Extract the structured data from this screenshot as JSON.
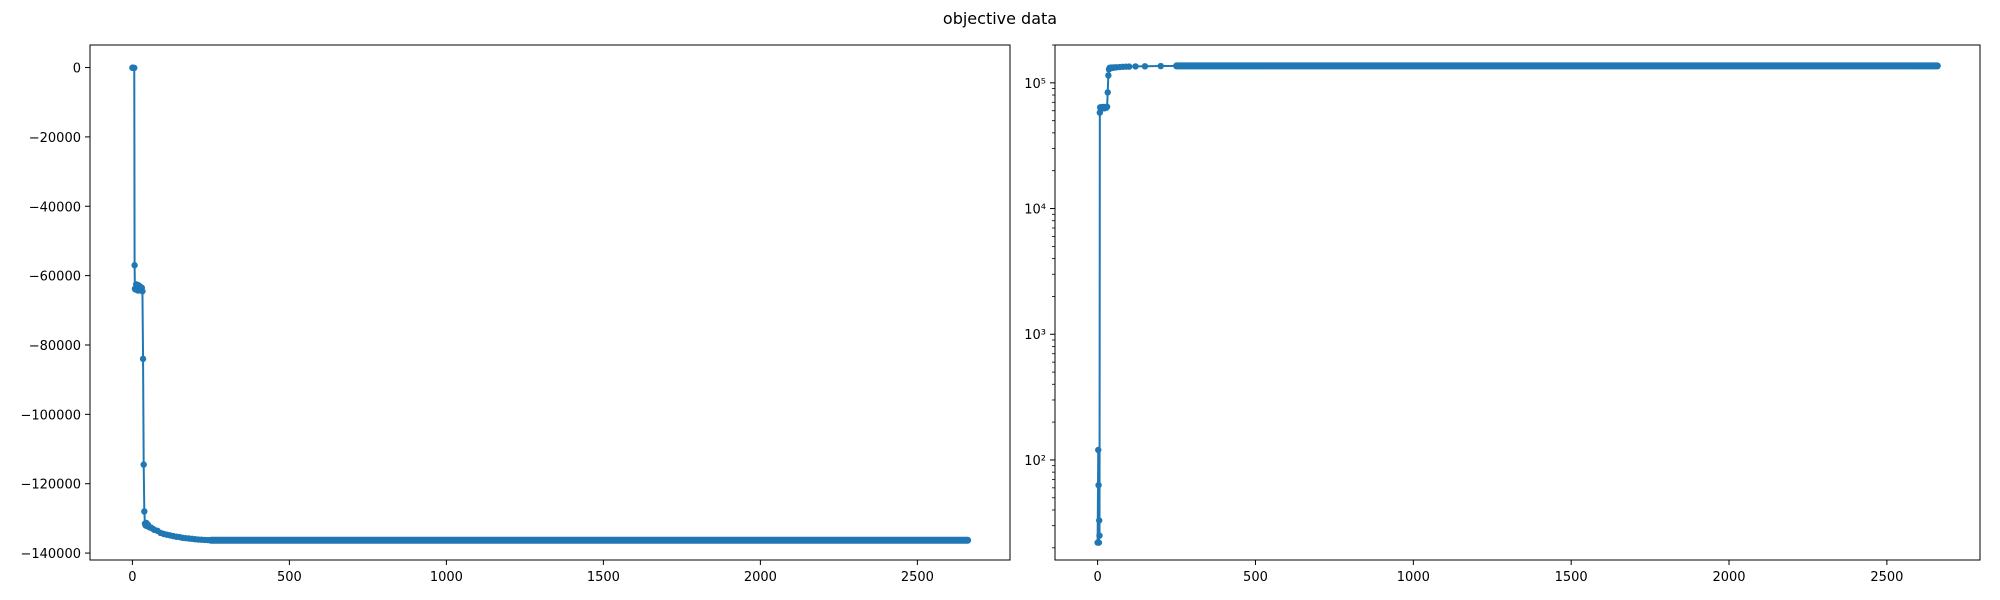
{
  "figure": {
    "suptitle": "objective data"
  },
  "chart_data": [
    {
      "type": "line",
      "title": "",
      "xlabel": "",
      "ylabel": "",
      "xlim": [
        -135,
        2795
      ],
      "ylim": [
        -142000,
        6500
      ],
      "xticks": [
        0,
        500,
        1000,
        1500,
        2000,
        2500
      ],
      "xtick_labels": [
        "0",
        "500",
        "1000",
        "1500",
        "2000",
        "2500"
      ],
      "yticks": [
        0,
        -20000,
        -40000,
        -60000,
        -80000,
        -100000,
        -120000,
        -140000
      ],
      "ytick_labels": [
        "0",
        "−20000",
        "−40000",
        "−60000",
        "−80000",
        "−100000",
        "−120000",
        "−140000"
      ],
      "grid": false,
      "marker": "circle",
      "color": "#1f77b4",
      "series": [
        {
          "x": [
            0,
            2,
            4,
            6,
            7,
            8,
            10,
            12,
            14,
            16,
            18,
            20,
            22,
            25,
            28,
            30,
            32,
            34,
            36,
            38,
            40,
            42,
            44,
            46,
            48,
            50,
            55,
            60,
            65,
            70,
            80,
            90,
            100,
            110,
            120,
            130,
            140,
            150,
            160,
            170,
            180,
            190,
            200,
            210,
            220,
            230,
            240,
            250,
            300,
            400,
            600,
            800,
            1000,
            1200,
            1400,
            1600,
            1800,
            2000,
            2200,
            2400,
            2600,
            2660
          ],
          "y": [
            -50,
            -60,
            -80,
            -100,
            -57000,
            -63800,
            -64000,
            -62500,
            -64000,
            -63000,
            -64300,
            -62800,
            -64200,
            -63200,
            -64300,
            -63500,
            -64500,
            -84000,
            -114500,
            -128000,
            -131500,
            -132000,
            -131300,
            -132200,
            -131700,
            -131900,
            -132600,
            -132700,
            -133000,
            -133300,
            -133600,
            -134200,
            -134500,
            -134700,
            -134900,
            -135100,
            -135300,
            -135400,
            -135600,
            -135700,
            -135800,
            -135900,
            -136000,
            -136100,
            -136150,
            -136200,
            -136250,
            -136300,
            -136300,
            -136300,
            -136300,
            -136300,
            -136300,
            -136300,
            -136300,
            -136300,
            -136300,
            -136300,
            -136300,
            -136300,
            -136300,
            -136300
          ]
        }
      ]
    },
    {
      "type": "line",
      "title": "",
      "xlabel": "",
      "ylabel": "",
      "xscale": "linear",
      "yscale": "log",
      "xlim": [
        -135,
        2795
      ],
      "ylim": [
        16,
        200000
      ],
      "xticks": [
        0,
        500,
        1000,
        1500,
        2000,
        2500
      ],
      "xtick_labels": [
        "0",
        "500",
        "1000",
        "1500",
        "2000",
        "2500"
      ],
      "yticks": [
        100,
        1000,
        10000,
        100000
      ],
      "ytick_labels": [
        "10²",
        "10³",
        "10⁴",
        "10⁵"
      ],
      "grid": false,
      "marker": "circle",
      "color": "#1f77b4",
      "series": [
        {
          "x": [
            0,
            2,
            3,
            4,
            5,
            6,
            7,
            8,
            10,
            12,
            14,
            16,
            18,
            20,
            22,
            25,
            28,
            30,
            32,
            34,
            36,
            38,
            40,
            42,
            44,
            46,
            48,
            50,
            55,
            60,
            70,
            80,
            90,
            100,
            120,
            150,
            200,
            250,
            300,
            500,
            1000,
            1500,
            2000,
            2500,
            2660
          ],
          "y": [
            22,
            120,
            63,
            22,
            33,
            25,
            58000,
            63800,
            62000,
            64000,
            62500,
            64200,
            63000,
            64300,
            62800,
            64200,
            63500,
            64500,
            84000,
            114500,
            128000,
            131500,
            132000,
            131300,
            132200,
            131700,
            131900,
            132600,
            132700,
            133000,
            133600,
            134200,
            134500,
            134700,
            135100,
            135400,
            136000,
            136250,
            136300,
            136300,
            136300,
            136300,
            136300,
            136300,
            136300
          ]
        }
      ]
    }
  ]
}
